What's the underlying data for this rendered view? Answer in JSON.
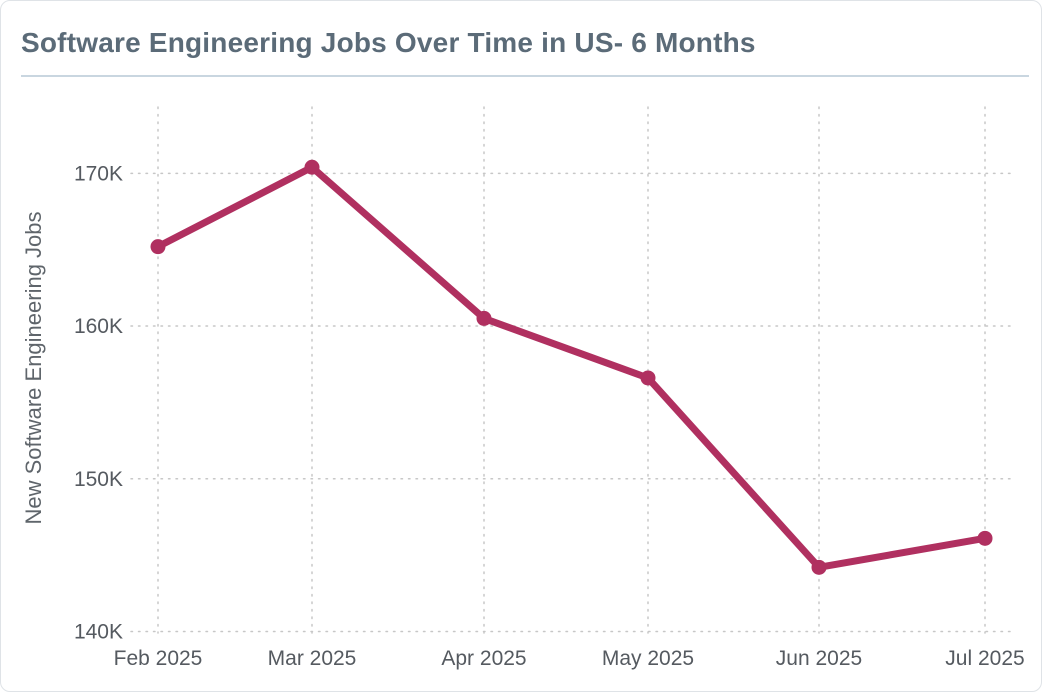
{
  "colors": {
    "series": "#b03060",
    "title": "#5b6b78",
    "grid": "#c7c7c7"
  },
  "chart_data": {
    "type": "line",
    "title": "Software Engineering Jobs Over Time in US- 6 Months",
    "xlabel": "",
    "ylabel": "New Software Engineering Jobs",
    "categories": [
      "Feb 2025",
      "Mar 2025",
      "Apr 2025",
      "May 2025",
      "Jun 2025",
      "Jul 2025"
    ],
    "series": [
      {
        "name": "New Software Engineering Jobs",
        "values": [
          165200,
          170400,
          160500,
          156600,
          144200,
          146100
        ]
      }
    ],
    "ylim": [
      139900,
      175000
    ],
    "yticks": [
      140000,
      150000,
      160000,
      170000
    ],
    "ytick_labels": [
      "140K",
      "150K",
      "160K",
      "170K"
    ],
    "grid": true,
    "legend": "none"
  }
}
